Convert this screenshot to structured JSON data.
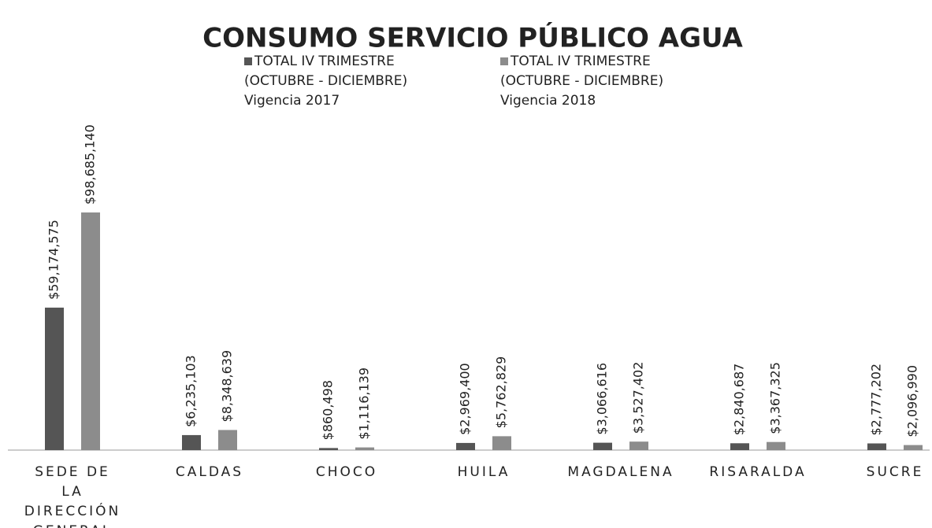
{
  "chart_data": {
    "type": "bar",
    "title": "CONSUMO SERVICIO PÚBLICO AGUA",
    "categories": [
      "SEDE DE LA DIRECCIÓN GENERAL",
      "CALDAS",
      "CHOCO",
      "HUILA",
      "MAGDALENA",
      "RISARALDA",
      "SUCRE"
    ],
    "series": [
      {
        "name": "TOTAL IV TRIMESTRE (OCTUBRE - DICIEMBRE) Vigencia 2017",
        "color": "#555555",
        "values": [
          59174575,
          6235103,
          860498,
          2969400,
          3066616,
          2840687,
          2777202
        ],
        "value_labels": [
          "$59,174,575",
          "$6,235,103",
          "$860,498",
          "$2,969,400",
          "$3,066,616",
          "$2,840,687",
          "$2,777,202"
        ]
      },
      {
        "name": "TOTAL IV TRIMESTRE (OCTUBRE - DICIEMBRE) Vigencia 2018",
        "color": "#8c8c8c",
        "values": [
          98685140,
          8348639,
          1116139,
          5762829,
          3527402,
          3367325,
          2096990
        ],
        "value_labels": [
          "$98,685,140",
          "$8,348,639",
          "$1,116,139",
          "$5,762,829",
          "$3,527,402",
          "$3,367,325",
          "$2,096,990"
        ]
      }
    ],
    "ylim": [
      0,
      100000000
    ]
  }
}
